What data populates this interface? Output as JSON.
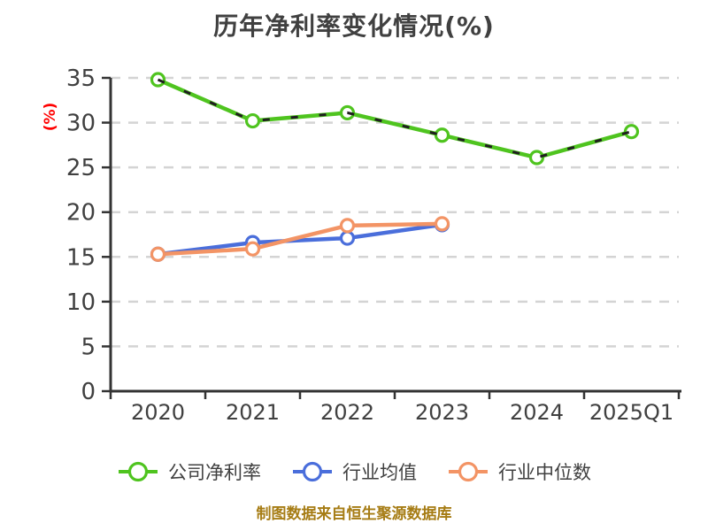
{
  "title": "历年净利率变化情况(%)",
  "y_axis_label": "(%)",
  "caption": "制图数据来自恒生聚源数据库",
  "style": {
    "text_color": "#404040",
    "axis_color": "#333333",
    "grid_color": "#d4d4d4",
    "y_axis_label_color": "#ff0000",
    "caption_color": "#a67c14",
    "background": "#ffffff",
    "green_series_dash_overlay_color": "#1f1f1f"
  },
  "chart_data": {
    "type": "line",
    "title": "历年净利率变化情况(%)",
    "xlabel": "",
    "ylabel": "(%)",
    "categories": [
      "2020",
      "2021",
      "2022",
      "2023",
      "2024",
      "2025Q1"
    ],
    "series": [
      {
        "name": "公司净利率",
        "color": "#4fc41f",
        "overlay_dashed": true,
        "values": [
          34.8,
          30.2,
          31.1,
          28.6,
          26.1,
          29.0
        ]
      },
      {
        "name": "行业均值",
        "color": "#4a6edb",
        "overlay_dashed": false,
        "values": [
          15.3,
          16.6,
          17.1,
          18.6,
          null,
          null
        ]
      },
      {
        "name": "行业中位数",
        "color": "#f39465",
        "overlay_dashed": false,
        "values": [
          15.3,
          15.9,
          18.5,
          18.7,
          null,
          null
        ]
      }
    ],
    "ylim": [
      0,
      35
    ],
    "ytick_step": 5,
    "yticks": [
      0,
      5,
      10,
      15,
      20,
      25,
      30,
      35
    ],
    "grid": "horizontal dashed",
    "legend_position": "bottom",
    "marker": "circle, white fill, colored ring"
  }
}
